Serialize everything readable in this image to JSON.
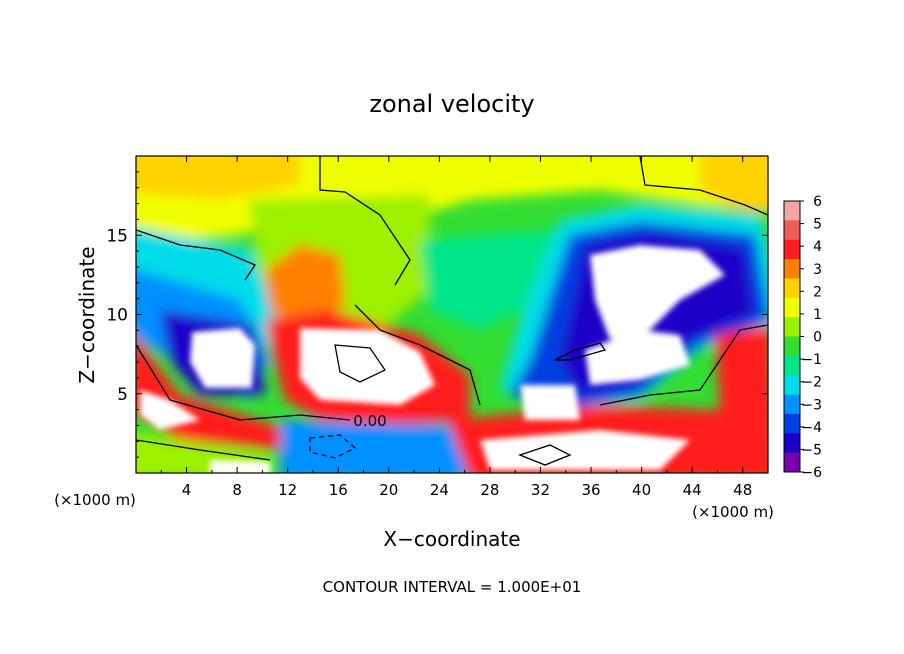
{
  "chart_data": {
    "type": "heatmap",
    "title": "zonal velocity",
    "xlabel": "X−coordinate",
    "ylabel": "Z−coordinate",
    "x_unit_left": "(×1000 m)",
    "x_unit_right": "(×1000 m)",
    "footer": "CONTOUR INTERVAL = 1.000E+01",
    "contour_label": "0.00",
    "xlim": [
      0,
      50
    ],
    "ylim": [
      0,
      20
    ],
    "x_ticks": [
      4,
      8,
      12,
      16,
      20,
      24,
      28,
      32,
      36,
      40,
      44,
      48
    ],
    "x_tick_labels": [
      "4",
      "8",
      "12",
      "16",
      "20",
      "24",
      "28",
      "32",
      "36",
      "40",
      "44",
      "48"
    ],
    "y_ticks": [
      5,
      10,
      15
    ],
    "y_tick_labels": [
      "5",
      "10",
      "15"
    ],
    "colorbar": {
      "min": -6,
      "max": 6,
      "labels": [
        "6",
        "5",
        "4",
        "3",
        "2",
        "1",
        "0",
        "−1",
        "−2",
        "−3",
        "−4",
        "−5",
        "−6"
      ],
      "colors": [
        "#f4a6a6",
        "#ef5a5a",
        "#ff1e1e",
        "#ff7f00",
        "#ffd200",
        "#f0ff00",
        "#9cf000",
        "#33dd33",
        "#00e58a",
        "#00dde8",
        "#0090ff",
        "#0040e0",
        "#1a00c8",
        "#7a00b0"
      ]
    }
  }
}
